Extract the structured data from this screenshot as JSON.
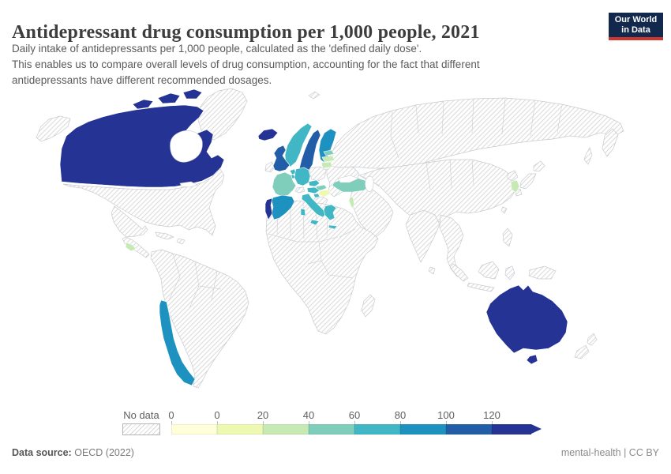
{
  "header": {
    "title": "Antidepressant drug consumption per 1,000 people, 2021",
    "subtitle_lines": [
      "Daily intake of antidepressants per 1,000 people, calculated as the 'defined daily dose'.",
      "This enables us to compare overall levels of drug consumption, accounting for the fact that different",
      "antidepressants have different recommended dosages."
    ],
    "logo": {
      "line1": "Our World",
      "line2": "in Data",
      "bg": "#12294d",
      "accent": "#cf362c"
    }
  },
  "legend": {
    "no_data_label": "No data",
    "tick_labels": [
      "0",
      "0",
      "20",
      "40",
      "60",
      "80",
      "100",
      "120"
    ],
    "colors": [
      "#ffffd9",
      "#edf8b1",
      "#c7e9b4",
      "#7fcdbb",
      "#41b6c4",
      "#1d91c0",
      "#225ea8",
      "#253494"
    ]
  },
  "footer": {
    "source_label": "Data source:",
    "source_value": "OECD (2022)",
    "note_link": "mental-health",
    "note_sep": " | ",
    "note_license": "CC BY"
  },
  "map": {
    "no_data_style": "diagonal-hatch",
    "country_fills": {
      "canada": "#253494",
      "iceland": "#253494",
      "portugal": "#253494",
      "australia": "#253494",
      "united-kingdom": "#225ea8",
      "sweden": "#225ea8",
      "spain": "#1d91c0",
      "finland": "#1d91c0",
      "chile": "#1d91c0",
      "norway": "#41b6c4",
      "denmark": "#41b6c4",
      "germany": "#41b6c4",
      "netherlands": "#41b6c4",
      "belgium": "#41b6c4",
      "czechia": "#41b6c4",
      "austria": "#41b6c4",
      "italy": "#41b6c4",
      "slovenia": "#41b6c4",
      "greece": "#41b6c4",
      "france": "#7fcdbb",
      "turkey": "#7fcdbb",
      "estonia": "#7fcdbb",
      "slovakia": "#7fcdbb",
      "latvia": "#c7e9b4",
      "lithuania": "#c7e9b4",
      "south-korea": "#c7e9b4",
      "costa-rica": "#c7e9b4",
      "israel": "#c7e9b4",
      "hungary": "#edf8b1"
    }
  },
  "chart_data": {
    "type": "heatmap",
    "subtype": "choropleth-world-map",
    "title": "Antidepressant drug consumption per 1,000 people, 2021",
    "unit": "defined daily doses per 1,000 people",
    "legend_bin_edges": [
      "0",
      "0",
      "20",
      "40",
      "60",
      "80",
      "100",
      "120",
      "120+"
    ],
    "legend_bin_colors": [
      "#ffffd9",
      "#edf8b1",
      "#c7e9b4",
      "#7fcdbb",
      "#41b6c4",
      "#1d91c0",
      "#225ea8",
      "#253494"
    ],
    "legend_position": "bottom",
    "no_data_pattern": "hatched",
    "countries_by_bin": {
      "120+": [
        "Canada",
        "Iceland",
        "Portugal",
        "Australia"
      ],
      "100-120": [
        "United Kingdom",
        "Sweden"
      ],
      "80-100": [
        "Spain",
        "Finland",
        "Chile"
      ],
      "60-80": [
        "Norway",
        "Denmark",
        "Germany",
        "Netherlands",
        "Belgium",
        "Czechia",
        "Austria",
        "Italy",
        "Slovenia",
        "Greece"
      ],
      "40-60": [
        "France",
        "Turkey",
        "Estonia",
        "Slovakia"
      ],
      "20-40": [
        "Latvia",
        "Lithuania",
        "South Korea",
        "Costa Rica",
        "Israel"
      ],
      "0-20": [
        "Hungary"
      ],
      "no-data": [
        "United States",
        "Mexico",
        "Brazil",
        "Argentina",
        "Russia",
        "China",
        "India",
        "Japan",
        "Indonesia",
        "Ireland",
        "Poland",
        "Switzerland",
        "New Zealand",
        "Greenland",
        "most of Africa and Asia"
      ]
    }
  }
}
